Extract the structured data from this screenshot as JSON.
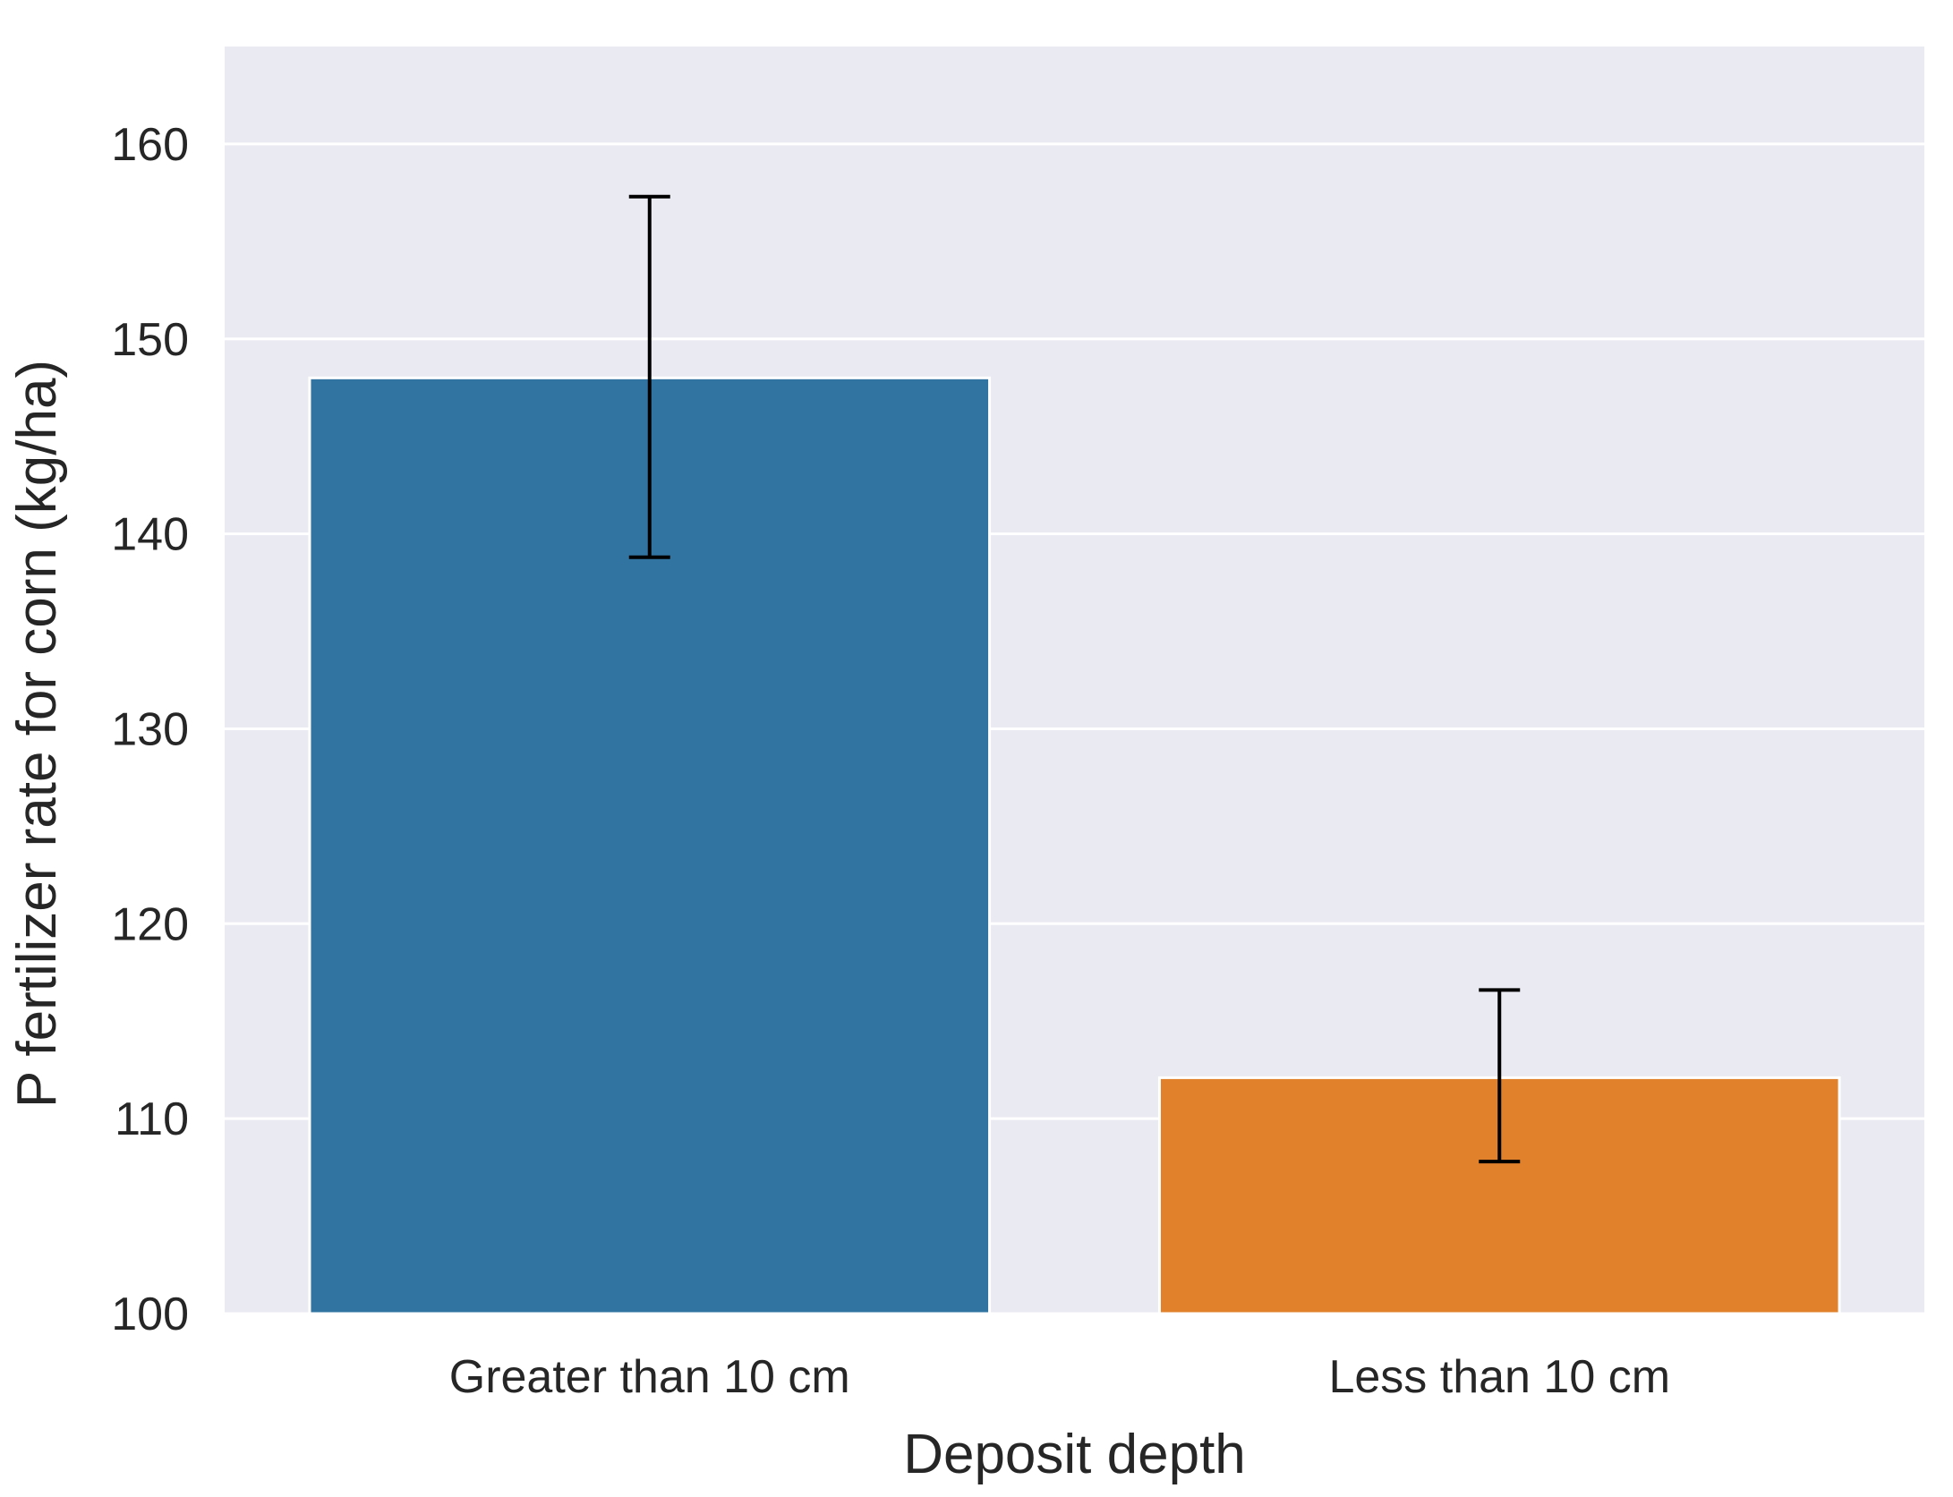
{
  "chart_data": {
    "type": "bar",
    "categories": [
      "Greater than 10 cm",
      "Less than 10 cm"
    ],
    "values": [
      148.0,
      112.1
    ],
    "error_bars": [
      {
        "low": 138.8,
        "high": 157.3
      },
      {
        "low": 107.8,
        "high": 116.6
      }
    ],
    "bar_colors": [
      "#3274a1",
      "#e1812c"
    ],
    "title": "",
    "xlabel": "Deposit depth",
    "ylabel": "P fertilizer rate for corn (kg/ha)",
    "ylim": [
      100,
      165
    ],
    "yticks": [
      100,
      110,
      120,
      130,
      140,
      150,
      160
    ],
    "grid": true,
    "background_color": "#eaeaf2",
    "grid_color": "#ffffff",
    "errorbar_color": "#000000"
  }
}
